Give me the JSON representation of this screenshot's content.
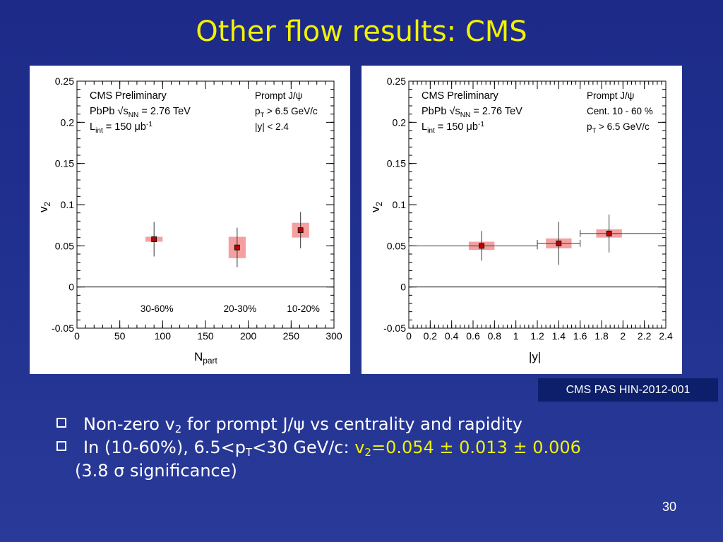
{
  "slide": {
    "title": "Other flow results: CMS",
    "reference": "CMS PAS HIN-2012-001",
    "page_number": "30",
    "bullets": [
      {
        "text": "Non-zero v",
        "sub": "2",
        "rest1": " for prompt J/",
        "psi": "ψ",
        "rest2": " vs centrality and rapidity"
      },
      {
        "text": "In (10-60%), 6.5<p",
        "sub": "T",
        "rest1": "<30 GeV/c: ",
        "hl_pre": "v",
        "hl_sub": "2",
        "hl_rest": "=0.054 ± 0.013 ± 0.006",
        "cont_pre": "(3.8 ",
        "sigma": "σ",
        "cont_post": " significance)"
      }
    ]
  },
  "chart_data": [
    {
      "type": "scatter",
      "legend_left": [
        "CMS Preliminary",
        "PbPb √s_NN = 2.76 TeV",
        "L_int = 150 μb^-1"
      ],
      "legend_right": [
        "Prompt J/ψ",
        "p_T > 6.5 GeV/c",
        "|y| < 2.4"
      ],
      "xlabel": "N_part",
      "ylabel": "v2",
      "xlim": [
        0,
        300
      ],
      "ylim": [
        -0.05,
        0.25
      ],
      "xticks": [
        0,
        50,
        100,
        150,
        200,
        250,
        300
      ],
      "yticks": [
        -0.05,
        0,
        0.05,
        0.1,
        0.15,
        0.2,
        0.25
      ],
      "ytick_labels": [
        "-0.05",
        "0",
        "0.05",
        "0.1",
        "0.15",
        "0.2",
        "0.25"
      ],
      "points": [
        {
          "x": 90,
          "y": 0.058,
          "stat": 0.021,
          "sys_lo": 0.055,
          "sys_hi": 0.061,
          "sys_w": 10,
          "label": "30-60%"
        },
        {
          "x": 187,
          "y": 0.048,
          "stat": 0.024,
          "sys_lo": 0.035,
          "sys_hi": 0.061,
          "sys_w": 10,
          "label": "20-30%"
        },
        {
          "x": 261,
          "y": 0.069,
          "stat": 0.022,
          "sys_lo": 0.06,
          "sys_hi": 0.078,
          "sys_w": 10,
          "label": "10-20%"
        }
      ],
      "point_color": "#c00000",
      "sys_color": "#f4a0a0"
    },
    {
      "type": "scatter",
      "legend_left": [
        "CMS Preliminary",
        "PbPb √s_NN = 2.76 TeV",
        "L_int = 150 μb^-1"
      ],
      "legend_right": [
        "Prompt J/ψ",
        "Cent. 10 - 60 %",
        "p_T > 6.5 GeV/c"
      ],
      "xlabel": "|y|",
      "ylabel": "v2",
      "xlim": [
        0,
        2.4
      ],
      "ylim": [
        -0.05,
        0.25
      ],
      "xticks": [
        0,
        0.2,
        0.4,
        0.6,
        0.8,
        1,
        1.2,
        1.4,
        1.6,
        1.8,
        2,
        2.2,
        2.4
      ],
      "yticks": [
        -0.05,
        0,
        0.05,
        0.1,
        0.15,
        0.2,
        0.25
      ],
      "ytick_labels": [
        "-0.05",
        "0",
        "0.05",
        "0.1",
        "0.15",
        "0.2",
        "0.25"
      ],
      "points": [
        {
          "x": 0.68,
          "y": 0.05,
          "stat": 0.018,
          "sys_lo": 0.045,
          "sys_hi": 0.055,
          "sys_w": 0.12,
          "xerr_lo": 0,
          "xerr_hi": 1.2
        },
        {
          "x": 1.4,
          "y": 0.053,
          "stat": 0.026,
          "sys_lo": 0.047,
          "sys_hi": 0.059,
          "sys_w": 0.12,
          "xerr_lo": 1.2,
          "xerr_hi": 1.6
        },
        {
          "x": 1.87,
          "y": 0.065,
          "stat": 0.023,
          "sys_lo": 0.06,
          "sys_hi": 0.07,
          "sys_w": 0.12,
          "xerr_lo": 1.6,
          "xerr_hi": 2.4
        }
      ],
      "point_color": "#c00000",
      "sys_color": "#f4a0a0"
    }
  ]
}
